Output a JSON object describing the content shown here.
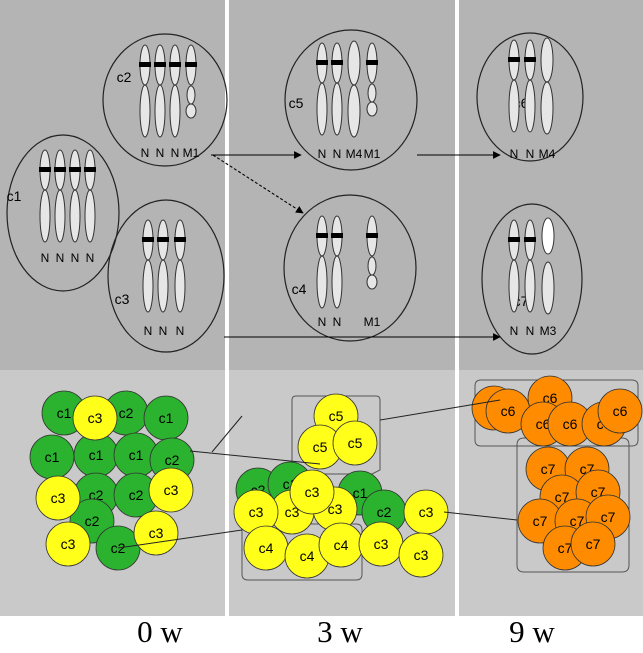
{
  "time_labels": [
    "0 w",
    "3 w",
    "9 w"
  ],
  "colors": {
    "top_background": "#b4b4b4",
    "bottom_background": "#c9c9c9",
    "divider": "#ffffff",
    "chromosome_fill": "#e6e6e6",
    "chromosome_stroke": "#333333",
    "band": "#000000",
    "green_cell": "#2bb32f",
    "yellow_cell": "#ffff1a",
    "orange_cell": "#ff8c00"
  },
  "clones_top": [
    {
      "label": "c1",
      "chromosomes": [
        "N",
        "N",
        "N",
        "N"
      ]
    },
    {
      "label": "c2",
      "chromosomes": [
        "N",
        "N",
        "N",
        "M1"
      ]
    },
    {
      "label": "c3",
      "chromosomes": [
        "N",
        "N",
        "N"
      ]
    },
    {
      "label": "c5",
      "chromosomes": [
        "N",
        "N",
        "M4",
        "M1"
      ]
    },
    {
      "label": "c4",
      "chromosomes": [
        "N",
        "N",
        "M1"
      ]
    },
    {
      "label": "c6",
      "chromosomes": [
        "N",
        "N",
        "M4"
      ]
    },
    {
      "label": "c7",
      "chromosomes": [
        "N",
        "N",
        "M3"
      ]
    }
  ],
  "cell_labels": [
    "c1",
    "c2",
    "c3",
    "c4",
    "c5",
    "c6",
    "c7"
  ]
}
